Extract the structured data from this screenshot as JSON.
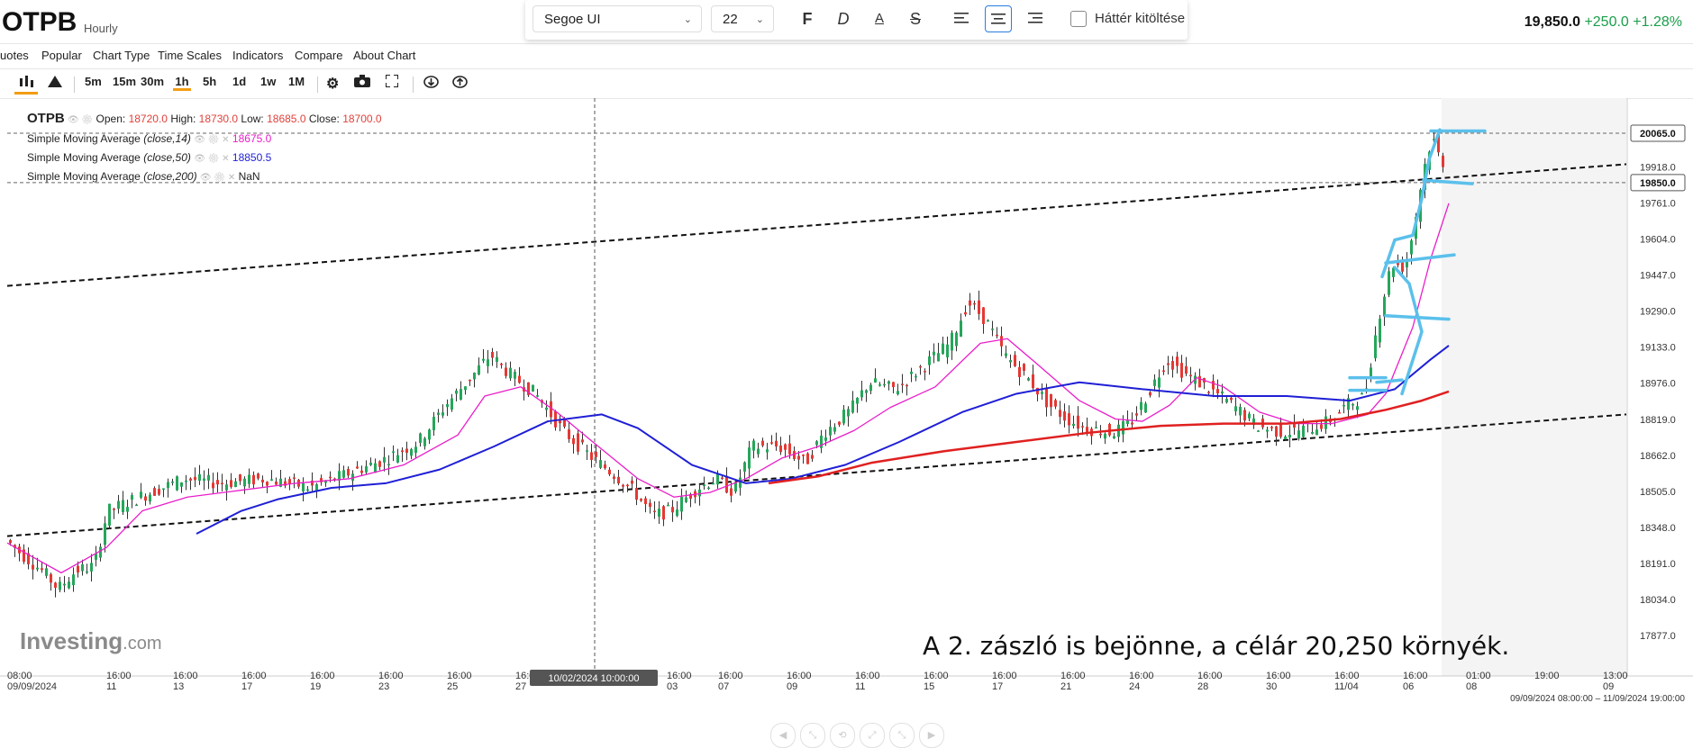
{
  "header": {
    "symbol": "OTPB",
    "interval": "Hourly",
    "price": "19,850.0",
    "change": "+250.0",
    "change_pct": "+1.28%"
  },
  "format_toolbar": {
    "font": "Segoe UI",
    "size": "22",
    "bold": "F",
    "italic": "D",
    "fill_label": "Háttér kitöltése"
  },
  "menu": [
    "uotes",
    "Popular",
    "Chart Type",
    "Time Scales",
    "Indicators",
    "Compare",
    "About Chart"
  ],
  "timescales": [
    "5m",
    "15m",
    "30m",
    "1h",
    "5h",
    "1d",
    "1w",
    "1M"
  ],
  "legend": {
    "symbol": "OTPB",
    "open_label": "Open:",
    "open": "18720.0",
    "high_label": "High:",
    "high": "18730.0",
    "low_label": "Low:",
    "low": "18685.0",
    "close_label": "Close:",
    "close": "18700.0",
    "sma14_label": "Simple Moving Average",
    "sma14_args": "(close,14)",
    "sma14_val": "18675.0",
    "sma50_label": "Simple Moving Average",
    "sma50_args": "(close,50)",
    "sma50_val": "18850.5",
    "sma200_label": "Simple Moving Average",
    "sma200_args": "(close,200)",
    "sma200_val": "NaN"
  },
  "annotation": "A 2. zászló is bejönne, a célár 20,250 környék.",
  "watermark": {
    "main": "Investing",
    "suffix": ".com"
  },
  "crosshair_date": "10/02/2024 10:00:00",
  "range_label": "09/09/2024 08:00:00 – 11/09/2024 19:00:00",
  "colors": {
    "up": "#26a65b",
    "down": "#e53935",
    "sma14": "#e91ec9",
    "sma50": "#1f1fd6",
    "sma200": "#e02020",
    "drawing": "#5bc0eb",
    "accent": "#f39c12"
  },
  "chart_data": {
    "type": "candlestick",
    "ylim": [
      17750,
      20150
    ],
    "y_ticks": [
      "20065.0",
      "19918.0",
      "19761.0",
      "19604.0",
      "19447.0",
      "19290.0",
      "19133.0",
      "18976.0",
      "18819.0",
      "18662.0",
      "18505.0",
      "18348.0",
      "18191.0",
      "18034.0",
      "17877.0"
    ],
    "price_labels": [
      {
        "value": 20065,
        "text": "20065.0"
      },
      {
        "value": 19850,
        "text": "19850.0"
      }
    ],
    "x_labels": [
      {
        "time": "08:00",
        "date": "09/09/2024"
      },
      {
        "time": "16:00",
        "date": "11"
      },
      {
        "time": "16:00",
        "date": "13"
      },
      {
        "time": "16:00",
        "date": "17"
      },
      {
        "time": "16:00",
        "date": "19"
      },
      {
        "time": "16:00",
        "date": "23"
      },
      {
        "time": "16:00",
        "date": "25"
      },
      {
        "time": "16:00",
        "date": "27"
      },
      {
        "time": "16:00",
        "date": "03"
      },
      {
        "time": "16:00",
        "date": "07"
      },
      {
        "time": "16:00",
        "date": "09"
      },
      {
        "time": "16:00",
        "date": "11"
      },
      {
        "time": "16:00",
        "date": "15"
      },
      {
        "time": "16:00",
        "date": "17"
      },
      {
        "time": "16:00",
        "date": "21"
      },
      {
        "time": "16:00",
        "date": "24"
      },
      {
        "time": "16:00",
        "date": "28"
      },
      {
        "time": "16:00",
        "date": "30"
      },
      {
        "time": "16:00",
        "date": "11/04"
      },
      {
        "time": "16:00",
        "date": "06"
      },
      {
        "time": "01:00",
        "date": "08"
      },
      {
        "time": "19:00",
        "date": ""
      },
      {
        "time": "13:00",
        "date": "09"
      }
    ],
    "close_path": [
      [
        0,
        18300
      ],
      [
        20,
        18230
      ],
      [
        45,
        18150
      ],
      [
        60,
        18080
      ],
      [
        80,
        18160
      ],
      [
        100,
        18180
      ],
      [
        115,
        18420
      ],
      [
        150,
        18480
      ],
      [
        200,
        18560
      ],
      [
        240,
        18540
      ],
      [
        290,
        18560
      ],
      [
        340,
        18520
      ],
      [
        380,
        18580
      ],
      [
        420,
        18640
      ],
      [
        460,
        18720
      ],
      [
        490,
        18880
      ],
      [
        520,
        19010
      ],
      [
        540,
        19100
      ],
      [
        560,
        19020
      ],
      [
        590,
        18930
      ],
      [
        620,
        18770
      ],
      [
        650,
        18660
      ],
      [
        680,
        18570
      ],
      [
        700,
        18500
      ],
      [
        720,
        18400
      ],
      [
        740,
        18420
      ],
      [
        770,
        18520
      ],
      [
        790,
        18560
      ],
      [
        810,
        18500
      ],
      [
        830,
        18700
      ],
      [
        860,
        18700
      ],
      [
        890,
        18630
      ],
      [
        910,
        18760
      ],
      [
        940,
        18860
      ],
      [
        960,
        18980
      ],
      [
        990,
        18950
      ],
      [
        1020,
        19050
      ],
      [
        1050,
        19150
      ],
      [
        1070,
        19330
      ],
      [
        1090,
        19250
      ],
      [
        1110,
        19100
      ],
      [
        1140,
        18980
      ],
      [
        1160,
        18880
      ],
      [
        1180,
        18820
      ],
      [
        1200,
        18780
      ],
      [
        1230,
        18760
      ],
      [
        1250,
        18800
      ],
      [
        1270,
        18930
      ],
      [
        1290,
        19080
      ],
      [
        1310,
        19020
      ],
      [
        1330,
        18970
      ],
      [
        1350,
        18920
      ],
      [
        1370,
        18860
      ],
      [
        1390,
        18790
      ],
      [
        1420,
        18760
      ],
      [
        1450,
        18780
      ],
      [
        1470,
        18810
      ],
      [
        1490,
        18880
      ],
      [
        1510,
        18920
      ],
      [
        1525,
        19250
      ],
      [
        1540,
        19500
      ],
      [
        1555,
        19480
      ],
      [
        1565,
        19660
      ],
      [
        1575,
        19900
      ],
      [
        1585,
        20050
      ],
      [
        1595,
        19940
      ]
    ],
    "sma14": [
      [
        0,
        18280
      ],
      [
        60,
        18150
      ],
      [
        110,
        18260
      ],
      [
        150,
        18420
      ],
      [
        200,
        18480
      ],
      [
        260,
        18510
      ],
      [
        320,
        18540
      ],
      [
        380,
        18560
      ],
      [
        440,
        18620
      ],
      [
        500,
        18750
      ],
      [
        530,
        18920
      ],
      [
        570,
        18960
      ],
      [
        610,
        18850
      ],
      [
        650,
        18720
      ],
      [
        700,
        18560
      ],
      [
        740,
        18480
      ],
      [
        780,
        18500
      ],
      [
        820,
        18560
      ],
      [
        860,
        18650
      ],
      [
        900,
        18700
      ],
      [
        940,
        18770
      ],
      [
        980,
        18870
      ],
      [
        1030,
        18960
      ],
      [
        1080,
        19150
      ],
      [
        1110,
        19170
      ],
      [
        1140,
        19070
      ],
      [
        1190,
        18900
      ],
      [
        1230,
        18820
      ],
      [
        1260,
        18810
      ],
      [
        1290,
        18880
      ],
      [
        1320,
        19000
      ],
      [
        1350,
        18960
      ],
      [
        1390,
        18850
      ],
      [
        1430,
        18800
      ],
      [
        1470,
        18800
      ],
      [
        1510,
        18840
      ],
      [
        1530,
        18930
      ],
      [
        1560,
        19220
      ],
      [
        1580,
        19520
      ],
      [
        1600,
        19760
      ]
    ],
    "sma50": [
      [
        210,
        18320
      ],
      [
        260,
        18420
      ],
      [
        300,
        18470
      ],
      [
        360,
        18520
      ],
      [
        420,
        18540
      ],
      [
        480,
        18600
      ],
      [
        540,
        18700
      ],
      [
        600,
        18810
      ],
      [
        660,
        18840
      ],
      [
        700,
        18780
      ],
      [
        760,
        18620
      ],
      [
        820,
        18540
      ],
      [
        870,
        18560
      ],
      [
        930,
        18620
      ],
      [
        990,
        18720
      ],
      [
        1060,
        18850
      ],
      [
        1120,
        18930
      ],
      [
        1190,
        18980
      ],
      [
        1260,
        18950
      ],
      [
        1340,
        18920
      ],
      [
        1420,
        18920
      ],
      [
        1490,
        18900
      ],
      [
        1540,
        18950
      ],
      [
        1580,
        19080
      ],
      [
        1600,
        19140
      ]
    ],
    "sma200": [
      [
        845,
        18540
      ],
      [
        900,
        18570
      ],
      [
        960,
        18630
      ],
      [
        1040,
        18680
      ],
      [
        1120,
        18720
      ],
      [
        1200,
        18760
      ],
      [
        1280,
        18790
      ],
      [
        1350,
        18800
      ],
      [
        1420,
        18800
      ],
      [
        1480,
        18820
      ],
      [
        1530,
        18860
      ],
      [
        1570,
        18900
      ],
      [
        1600,
        18940
      ]
    ]
  }
}
